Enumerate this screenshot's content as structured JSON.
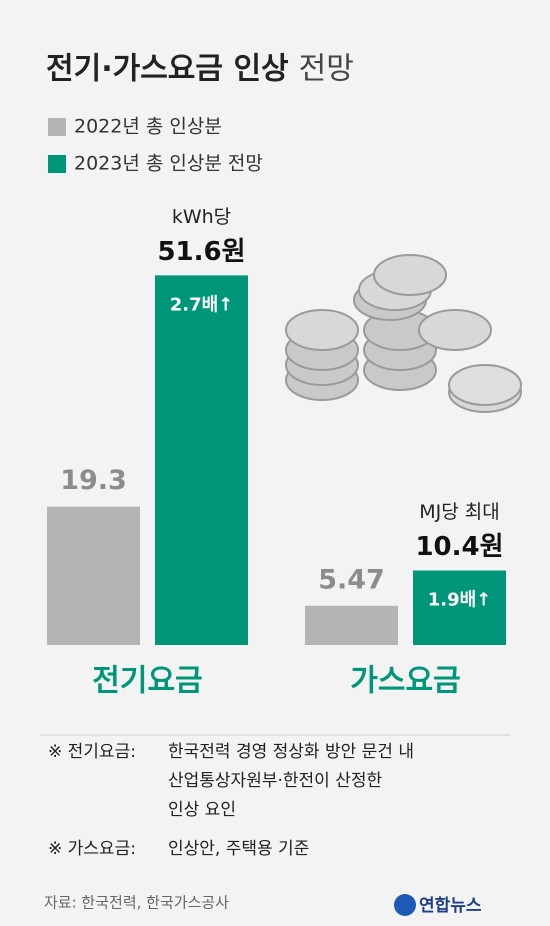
{
  "chart_data": {
    "type": "bar",
    "title": "전기·가스요금 인상",
    "title_suffix": "전망",
    "categories": [
      "전기요금",
      "가스요금"
    ],
    "series": [
      {
        "name": "2022년 총 인상분",
        "color": "#b4b4b5",
        "values": [
          19.3,
          5.47
        ]
      },
      {
        "name": "2023년 총 인상분 전망",
        "color": "#00967a",
        "values": [
          51.6,
          10.4
        ],
        "value_labels": [
          "51.6원",
          "10.4원"
        ]
      }
    ],
    "unit_labels": [
      "kWh당",
      "MJ당 최대"
    ],
    "ratio_labels": [
      "2.7배↑",
      "1.9배↑"
    ],
    "ylim": [
      0,
      55
    ]
  },
  "notes": [
    {
      "label": "※ 전기요금:",
      "lines": [
        "한국전력 경영 정상화 방안 문건 내",
        "산업통상자원부·한전이 산정한",
        "인상 요인"
      ]
    },
    {
      "label": "※ 가스요금:",
      "lines": [
        "인상안, 주택용 기준"
      ]
    }
  ],
  "source": "자료: 한국전력, 한국가스공사",
  "credit": "연합뉴스"
}
